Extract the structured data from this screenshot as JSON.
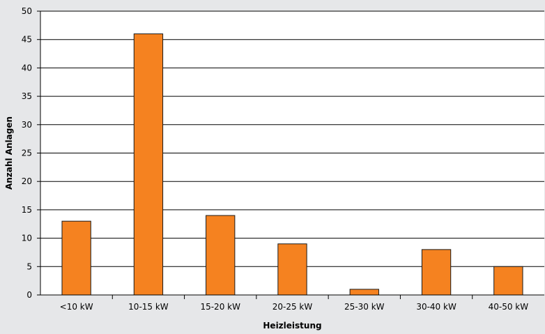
{
  "colors": {
    "background": "#e6e7e9",
    "plot_area": "#ffffff",
    "bar_fill": "#f58220",
    "bar_stroke": "#1a1a1a",
    "gridline": "#000000"
  },
  "chart_data": {
    "type": "bar",
    "categories": [
      "<10 kW",
      "10-15 kW",
      "15-20 kW",
      "20-25 kW",
      "25-30 kW",
      "30-40 kW",
      "40-50 kW"
    ],
    "values": [
      13,
      46,
      14,
      9,
      1,
      8,
      5
    ],
    "title": "",
    "xlabel": "Heizleistung",
    "ylabel": "Anzahl Anlagen",
    "ylim": [
      0,
      50
    ],
    "yticks": [
      0,
      5,
      10,
      15,
      20,
      25,
      30,
      35,
      40,
      45,
      50
    ],
    "grid": true,
    "legend": "none"
  }
}
